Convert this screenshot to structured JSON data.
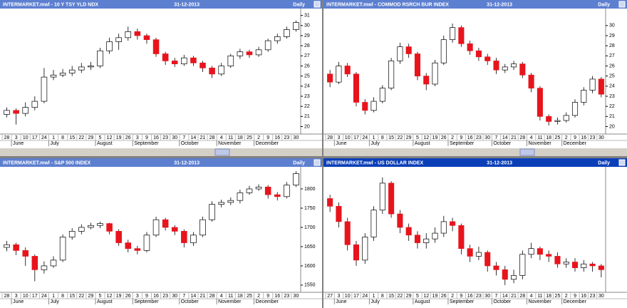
{
  "chart_data": [
    {
      "type": "candlestick",
      "title": "INTERMARKET.mwl - 10 Y TSY YLD NDX",
      "date": "31-12-2013",
      "period": "Daily",
      "categories": [
        "28",
        "3",
        "10",
        "17",
        "24",
        "1",
        "8",
        "15",
        "22",
        "29",
        "5",
        "12",
        "19",
        "26",
        "3",
        "9",
        "16",
        "23",
        "30",
        "7",
        "14",
        "21",
        "28",
        "4",
        "11",
        "18",
        "25",
        "2",
        "9",
        "16",
        "23",
        "30"
      ],
      "month_ticks": [
        {
          "value": 1,
          "label": "June"
        },
        {
          "value": 5,
          "label": "July"
        },
        {
          "value": 10,
          "label": "August"
        },
        {
          "value": 14,
          "label": "September"
        },
        {
          "value": 19,
          "label": "October"
        },
        {
          "value": 23,
          "label": "November"
        },
        {
          "value": 27,
          "label": "December"
        }
      ],
      "open": [
        21.2,
        21.6,
        21.3,
        21.9,
        22.5,
        24.9,
        25.1,
        25.3,
        25.6,
        25.9,
        26.0,
        27.5,
        28.4,
        28.8,
        29.4,
        29.0,
        28.6,
        27.2,
        26.5,
        26.2,
        26.8,
        26.3,
        25.8,
        25.2,
        26.0,
        27.0,
        27.4,
        27.1,
        27.6,
        28.5,
        28.9,
        29.6
      ],
      "high": [
        21.9,
        21.8,
        22.4,
        23.0,
        25.8,
        25.6,
        25.7,
        26.0,
        26.3,
        26.4,
        27.8,
        28.8,
        29.2,
        29.9,
        29.7,
        29.2,
        28.8,
        27.4,
        26.8,
        27.1,
        27.0,
        26.5,
        26.0,
        26.3,
        27.2,
        27.7,
        27.6,
        27.9,
        28.7,
        29.2,
        29.9,
        30.5
      ],
      "low": [
        20.9,
        20.2,
        21.0,
        21.6,
        22.3,
        24.6,
        24.9,
        25.0,
        25.3,
        25.6,
        25.8,
        27.2,
        27.6,
        28.5,
        28.6,
        28.2,
        26.9,
        26.1,
        25.9,
        26.0,
        26.0,
        25.4,
        24.8,
        25.0,
        25.8,
        26.7,
        26.8,
        26.9,
        27.4,
        28.2,
        28.7,
        29.4
      ],
      "close": [
        21.6,
        21.3,
        21.9,
        22.5,
        24.9,
        25.1,
        25.3,
        25.6,
        25.9,
        26.0,
        27.5,
        28.4,
        28.8,
        29.4,
        29.0,
        28.6,
        27.2,
        26.5,
        26.2,
        26.8,
        26.3,
        25.8,
        25.2,
        26.0,
        27.0,
        27.4,
        27.1,
        27.6,
        28.5,
        28.9,
        29.6,
        30.3
      ],
      "up_color": "#ffffff",
      "down_color": "#e8141c",
      "ylim": [
        19.4,
        31.4
      ],
      "yticks": [
        20,
        21,
        22,
        23,
        24,
        25,
        26,
        27,
        28,
        29,
        30,
        31
      ],
      "grid": false
    },
    {
      "type": "candlestick",
      "title": "INTERMARKET.mwl - COMMOD RSRCH BUR INDEX",
      "date": "31-12-2013",
      "period": "Daily",
      "categories": [
        "28",
        "3",
        "10",
        "17",
        "24",
        "1",
        "8",
        "15",
        "22",
        "29",
        "5",
        "12",
        "19",
        "26",
        "2",
        "9",
        "16",
        "23",
        "30",
        "7",
        "14",
        "21",
        "28",
        "4",
        "11",
        "18",
        "25",
        "2",
        "9",
        "16",
        "23",
        "30"
      ],
      "month_ticks": [
        {
          "value": 1,
          "label": "June"
        },
        {
          "value": 5,
          "label": "July"
        },
        {
          "value": 10,
          "label": "August"
        },
        {
          "value": 14,
          "label": "September"
        },
        {
          "value": 19,
          "label": "October"
        },
        {
          "value": 23,
          "label": "November"
        },
        {
          "value": 27,
          "label": "December"
        }
      ],
      "open": [
        25.2,
        24.4,
        26.0,
        25.2,
        22.4,
        21.6,
        22.5,
        23.8,
        26.5,
        27.9,
        27.2,
        25.0,
        24.2,
        26.3,
        28.6,
        29.8,
        28.2,
        27.5,
        26.9,
        26.5,
        25.6,
        25.9,
        26.2,
        25.1,
        23.8,
        21.0,
        20.5,
        20.6,
        21.1,
        22.4,
        23.6,
        24.7
      ],
      "high": [
        25.6,
        26.4,
        26.3,
        25.4,
        22.7,
        22.9,
        24.1,
        26.8,
        28.3,
        28.2,
        27.4,
        25.3,
        26.6,
        29.0,
        30.2,
        30.0,
        28.5,
        27.8,
        27.2,
        26.8,
        26.2,
        26.5,
        26.4,
        25.3,
        24.0,
        21.2,
        20.9,
        21.4,
        22.7,
        23.9,
        25.0,
        24.9
      ],
      "low": [
        23.9,
        24.2,
        24.9,
        22.0,
        21.2,
        21.4,
        22.3,
        23.6,
        26.2,
        26.8,
        24.6,
        23.6,
        24.0,
        26.1,
        28.3,
        27.9,
        27.1,
        26.5,
        26.1,
        25.2,
        25.3,
        25.6,
        24.8,
        23.4,
        20.6,
        20.1,
        20.2,
        20.4,
        20.9,
        22.1,
        23.3,
        22.9
      ],
      "close": [
        24.4,
        26.0,
        25.2,
        22.4,
        21.6,
        22.5,
        23.8,
        26.5,
        27.9,
        27.2,
        25.0,
        24.2,
        26.3,
        28.6,
        29.8,
        28.2,
        27.5,
        26.9,
        26.5,
        25.6,
        25.9,
        26.2,
        25.1,
        23.8,
        21.0,
        20.5,
        20.6,
        21.1,
        22.4,
        23.6,
        24.7,
        23.2
      ],
      "up_color": "#ffffff",
      "down_color": "#e8141c",
      "ylim": [
        19.4,
        31.4
      ],
      "yticks": [
        20,
        21,
        22,
        23,
        24,
        25,
        26,
        27,
        28,
        29,
        30
      ],
      "grid": false
    },
    {
      "type": "candlestick",
      "title": "INTERMARKET.mwl - S&P 500 INDEX",
      "date": "31-12-2013",
      "period": "Daily",
      "categories": [
        "28",
        "3",
        "10",
        "17",
        "24",
        "1",
        "8",
        "15",
        "22",
        "29",
        "5",
        "12",
        "19",
        "26",
        "3",
        "9",
        "16",
        "23",
        "30",
        "7",
        "14",
        "21",
        "28",
        "4",
        "11",
        "18",
        "25",
        "2",
        "9",
        "16",
        "23",
        "30"
      ],
      "month_ticks": [
        {
          "value": 1,
          "label": "June"
        },
        {
          "value": 5,
          "label": "July"
        },
        {
          "value": 10,
          "label": "August"
        },
        {
          "value": 14,
          "label": "September"
        },
        {
          "value": 19,
          "label": "October"
        },
        {
          "value": 23,
          "label": "November"
        },
        {
          "value": 27,
          "label": "December"
        }
      ],
      "open": [
        1648,
        1655,
        1640,
        1625,
        1590,
        1600,
        1615,
        1675,
        1690,
        1700,
        1705,
        1710,
        1690,
        1660,
        1645,
        1640,
        1680,
        1720,
        1700,
        1690,
        1660,
        1680,
        1720,
        1760,
        1765,
        1770,
        1790,
        1800,
        1805,
        1785,
        1780,
        1810
      ],
      "high": [
        1665,
        1660,
        1648,
        1630,
        1612,
        1625,
        1682,
        1698,
        1708,
        1712,
        1715,
        1712,
        1695,
        1668,
        1652,
        1688,
        1728,
        1725,
        1706,
        1695,
        1688,
        1728,
        1768,
        1772,
        1778,
        1798,
        1808,
        1812,
        1810,
        1792,
        1818,
        1846
      ],
      "low": [
        1638,
        1628,
        1600,
        1560,
        1580,
        1595,
        1610,
        1668,
        1682,
        1695,
        1698,
        1682,
        1652,
        1635,
        1630,
        1635,
        1675,
        1692,
        1680,
        1648,
        1652,
        1675,
        1715,
        1752,
        1758,
        1762,
        1785,
        1795,
        1775,
        1770,
        1775,
        1805
      ],
      "close": [
        1655,
        1640,
        1625,
        1590,
        1600,
        1615,
        1675,
        1690,
        1700,
        1705,
        1710,
        1690,
        1660,
        1645,
        1640,
        1680,
        1720,
        1700,
        1690,
        1660,
        1680,
        1720,
        1760,
        1765,
        1770,
        1790,
        1800,
        1805,
        1785,
        1780,
        1810,
        1840
      ],
      "up_color": "#ffffff",
      "down_color": "#e8141c",
      "ylim": [
        1535,
        1850
      ],
      "yticks": [
        1550,
        1600,
        1650,
        1700,
        1750,
        1800
      ],
      "grid": false
    },
    {
      "type": "candlestick",
      "title": "INTERMARKET.mwl - US DOLLAR INDEX",
      "date": "31-12-2013",
      "period": "Daily",
      "categories": [
        "27",
        "3",
        "10",
        "17",
        "24",
        "1",
        "8",
        "15",
        "22",
        "29",
        "5",
        "12",
        "19",
        "26",
        "2",
        "9",
        "16",
        "23",
        "30",
        "7",
        "14",
        "21",
        "28",
        "4",
        "11",
        "18",
        "25",
        "2",
        "9",
        "16",
        "23",
        "30"
      ],
      "month_ticks": [
        {
          "value": 1,
          "label": "June"
        },
        {
          "value": 5,
          "label": "July"
        },
        {
          "value": 10,
          "label": "August"
        },
        {
          "value": 14,
          "label": "September"
        },
        {
          "value": 19,
          "label": "October"
        },
        {
          "value": 23,
          "label": "November"
        },
        {
          "value": 27,
          "label": "December"
        }
      ],
      "open": [
        83.8,
        83.4,
        82.6,
        81.4,
        80.6,
        81.8,
        83.2,
        84.6,
        83.0,
        82.3,
        81.9,
        81.5,
        81.7,
        82.0,
        82.6,
        82.4,
        81.2,
        80.8,
        81.0,
        80.3,
        80.1,
        79.6,
        79.8,
        80.9,
        81.2,
        80.9,
        80.8,
        80.4,
        80.5,
        80.2,
        80.4,
        80.3
      ],
      "high": [
        84.0,
        83.6,
        82.8,
        81.6,
        82.0,
        83.4,
        84.9,
        84.7,
        83.2,
        82.5,
        82.1,
        82.0,
        82.3,
        82.9,
        82.8,
        82.5,
        81.4,
        81.3,
        81.1,
        80.5,
        80.3,
        80.1,
        81.1,
        81.5,
        81.3,
        81.1,
        81.0,
        80.7,
        80.7,
        80.6,
        80.5,
        80.4
      ],
      "low": [
        83.1,
        82.3,
        81.1,
        80.3,
        80.4,
        81.6,
        83.0,
        82.8,
        82.0,
        81.6,
        81.2,
        81.2,
        81.5,
        81.8,
        82.1,
        80.9,
        80.5,
        80.6,
        80.0,
        79.8,
        79.3,
        79.4,
        79.6,
        80.7,
        80.6,
        80.5,
        80.2,
        80.2,
        80.0,
        80.0,
        80.0,
        79.7
      ],
      "close": [
        83.4,
        82.6,
        81.4,
        80.6,
        81.8,
        83.2,
        84.6,
        83.0,
        82.3,
        81.9,
        81.5,
        81.7,
        82.0,
        82.6,
        82.4,
        81.2,
        80.8,
        81.0,
        80.3,
        80.1,
        79.6,
        79.8,
        80.9,
        81.2,
        80.9,
        80.8,
        80.4,
        80.5,
        80.2,
        80.4,
        80.3,
        80.1
      ],
      "up_color": "#ffffff",
      "down_color": "#e8141c",
      "ylim": [
        79,
        85.3
      ],
      "grid": false
    }
  ]
}
